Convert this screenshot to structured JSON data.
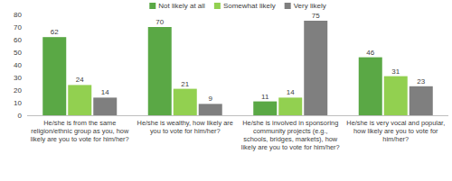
{
  "chart_data": {
    "type": "bar",
    "categories": [
      "He/she is from the same religion/ethnic group as you, how likely are you to vote for him/her?",
      "He/she is wealthy, how likely are you to vote for him/her?",
      "He/she is involved in sponsoring community projects (e.g., schools, bridges, markets), how likely are you to vote for him/her?",
      "He/she is very vocal and popular, how likely are you to vote for him/her?"
    ],
    "series": [
      {
        "name": "Not likely at all",
        "color": "#5aa845",
        "values": [
          62,
          70,
          11,
          46
        ]
      },
      {
        "name": "Somewhat likely",
        "color": "#92d050",
        "values": [
          24,
          21,
          14,
          31
        ]
      },
      {
        "name": "Very likely",
        "color": "#7f7f7f",
        "values": [
          14,
          9,
          75,
          23
        ]
      }
    ],
    "ylim": [
      0,
      80
    ],
    "yticks": [
      0,
      10,
      20,
      30,
      40,
      50,
      60,
      70,
      80
    ],
    "grid": false,
    "legend": "top",
    "data_labels": true
  }
}
